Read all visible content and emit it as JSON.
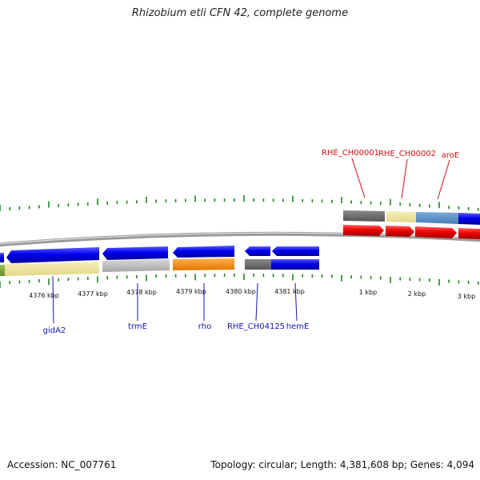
{
  "title": "Rhizobium etli CFN 42, complete genome",
  "footer": {
    "accession": "Accession: NC_007761",
    "summary": "Topology: circular; Length: 4,381,608 bp; Genes: 4,094"
  },
  "scale_labels": [
    "4376 kbp",
    "4377 kbp",
    "4378 kbp",
    "4379 kbp",
    "4380 kbp",
    "4381 kbp",
    "1 kbp",
    "2 kbp",
    "3 kbp"
  ],
  "gene_labels_top": [
    "RHE_CH00001",
    "RHE_CH00002",
    "aroE"
  ],
  "gene_labels_bottom": [
    "gidA2",
    "trmE",
    "rho",
    "RHE_CH04125",
    "hemE"
  ],
  "colors": {
    "forward_gene": "#0000ee",
    "reverse_gene": "#ff0000",
    "tick": "#1a8a1a",
    "bottom_label": "#1414b4",
    "top_label": "#d01010",
    "backbone": "#888888"
  }
}
